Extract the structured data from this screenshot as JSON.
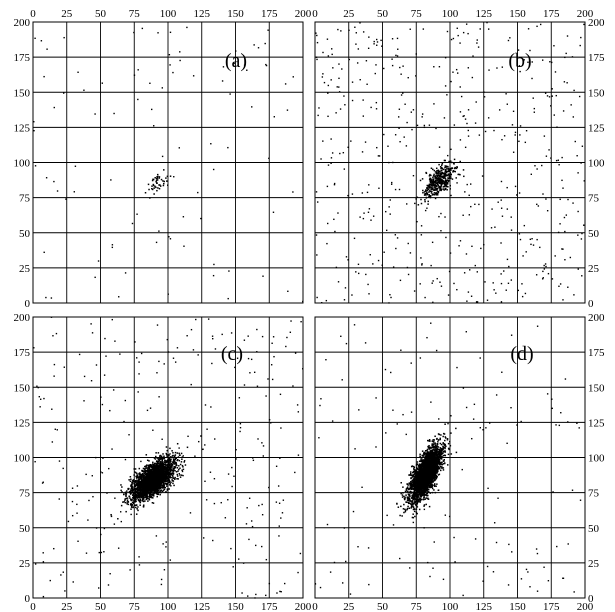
{
  "chart_data": [
    {
      "type": "scatter",
      "panel_label": "(a)",
      "xlim": [
        0,
        200
      ],
      "ylim": [
        0,
        200
      ],
      "x_ticks": [
        0,
        25,
        50,
        75,
        100,
        125,
        150,
        175,
        200
      ],
      "y_ticks": [
        0,
        25,
        50,
        75,
        100,
        125,
        150,
        175,
        200
      ],
      "grid": true,
      "cluster": {
        "center": [
          93,
          86
        ],
        "spread_x": 4,
        "spread_y": 4,
        "correlation": 0.6,
        "n": 45
      },
      "background_points": 95
    },
    {
      "type": "scatter",
      "panel_label": "(b)",
      "xlim": [
        0,
        200
      ],
      "ylim": [
        0,
        200
      ],
      "x_ticks": [
        0,
        25,
        50,
        75,
        100,
        125,
        150,
        175,
        200
      ],
      "y_ticks": [
        0,
        25,
        50,
        75,
        100,
        125,
        150,
        175,
        200
      ],
      "grid": true,
      "cluster": {
        "center": [
          92,
          87
        ],
        "spread_x": 6,
        "spread_y": 6,
        "correlation": 0.6,
        "n": 420
      },
      "background_points": 470
    },
    {
      "type": "scatter",
      "panel_label": "(c)",
      "xlim": [
        0,
        200
      ],
      "ylim": [
        0,
        200
      ],
      "x_ticks": [
        0,
        25,
        50,
        75,
        100,
        125,
        150,
        175,
        200
      ],
      "y_ticks": [
        0,
        25,
        50,
        75,
        100,
        125,
        150,
        175,
        200
      ],
      "grid": true,
      "cluster": {
        "center": [
          89,
          84
        ],
        "spread_x": 8,
        "spread_y": 7,
        "correlation": 0.65,
        "n": 2600
      },
      "background_points": 260
    },
    {
      "type": "scatter",
      "panel_label": "(d)",
      "xlim": [
        0,
        200
      ],
      "ylim": [
        0,
        200
      ],
      "x_ticks": [
        0,
        25,
        50,
        75,
        100,
        125,
        150,
        175,
        200
      ],
      "y_ticks": [
        0,
        25,
        50,
        75,
        100,
        125,
        150,
        175,
        200
      ],
      "grid": true,
      "cluster": {
        "center": [
          82,
          88
        ],
        "spread_x": 6,
        "spread_y": 10,
        "correlation": 0.7,
        "n": 2600
      },
      "background_points": 130
    }
  ]
}
